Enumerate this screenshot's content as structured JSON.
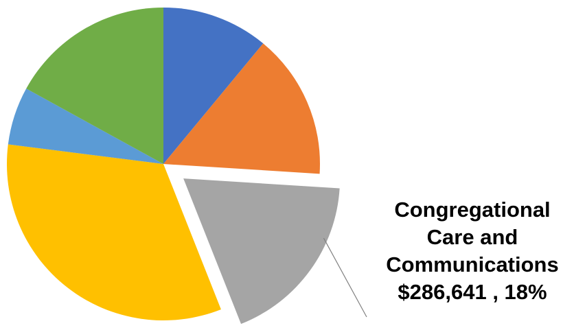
{
  "chart_data": {
    "type": "pie",
    "start_angle_deg": 0,
    "direction": "clockwise",
    "slices": [
      {
        "color": "#4472C4",
        "percent": 11
      },
      {
        "color": "#ED7D31",
        "percent": 15
      },
      {
        "color": "#A5A5A5",
        "percent": 18,
        "exploded": true,
        "label": "Congregational Care and Communications $286,641 , 18%"
      },
      {
        "color": "#FFC000",
        "percent": 33
      },
      {
        "color": "#5B9BD5",
        "percent": 6
      },
      {
        "color": "#70AD47",
        "percent": 17
      }
    ],
    "legend": "none"
  },
  "callout": {
    "line1": "Congregational",
    "line2": "Care and",
    "line3": "Communications",
    "line4": "$286,641 , 18%"
  }
}
